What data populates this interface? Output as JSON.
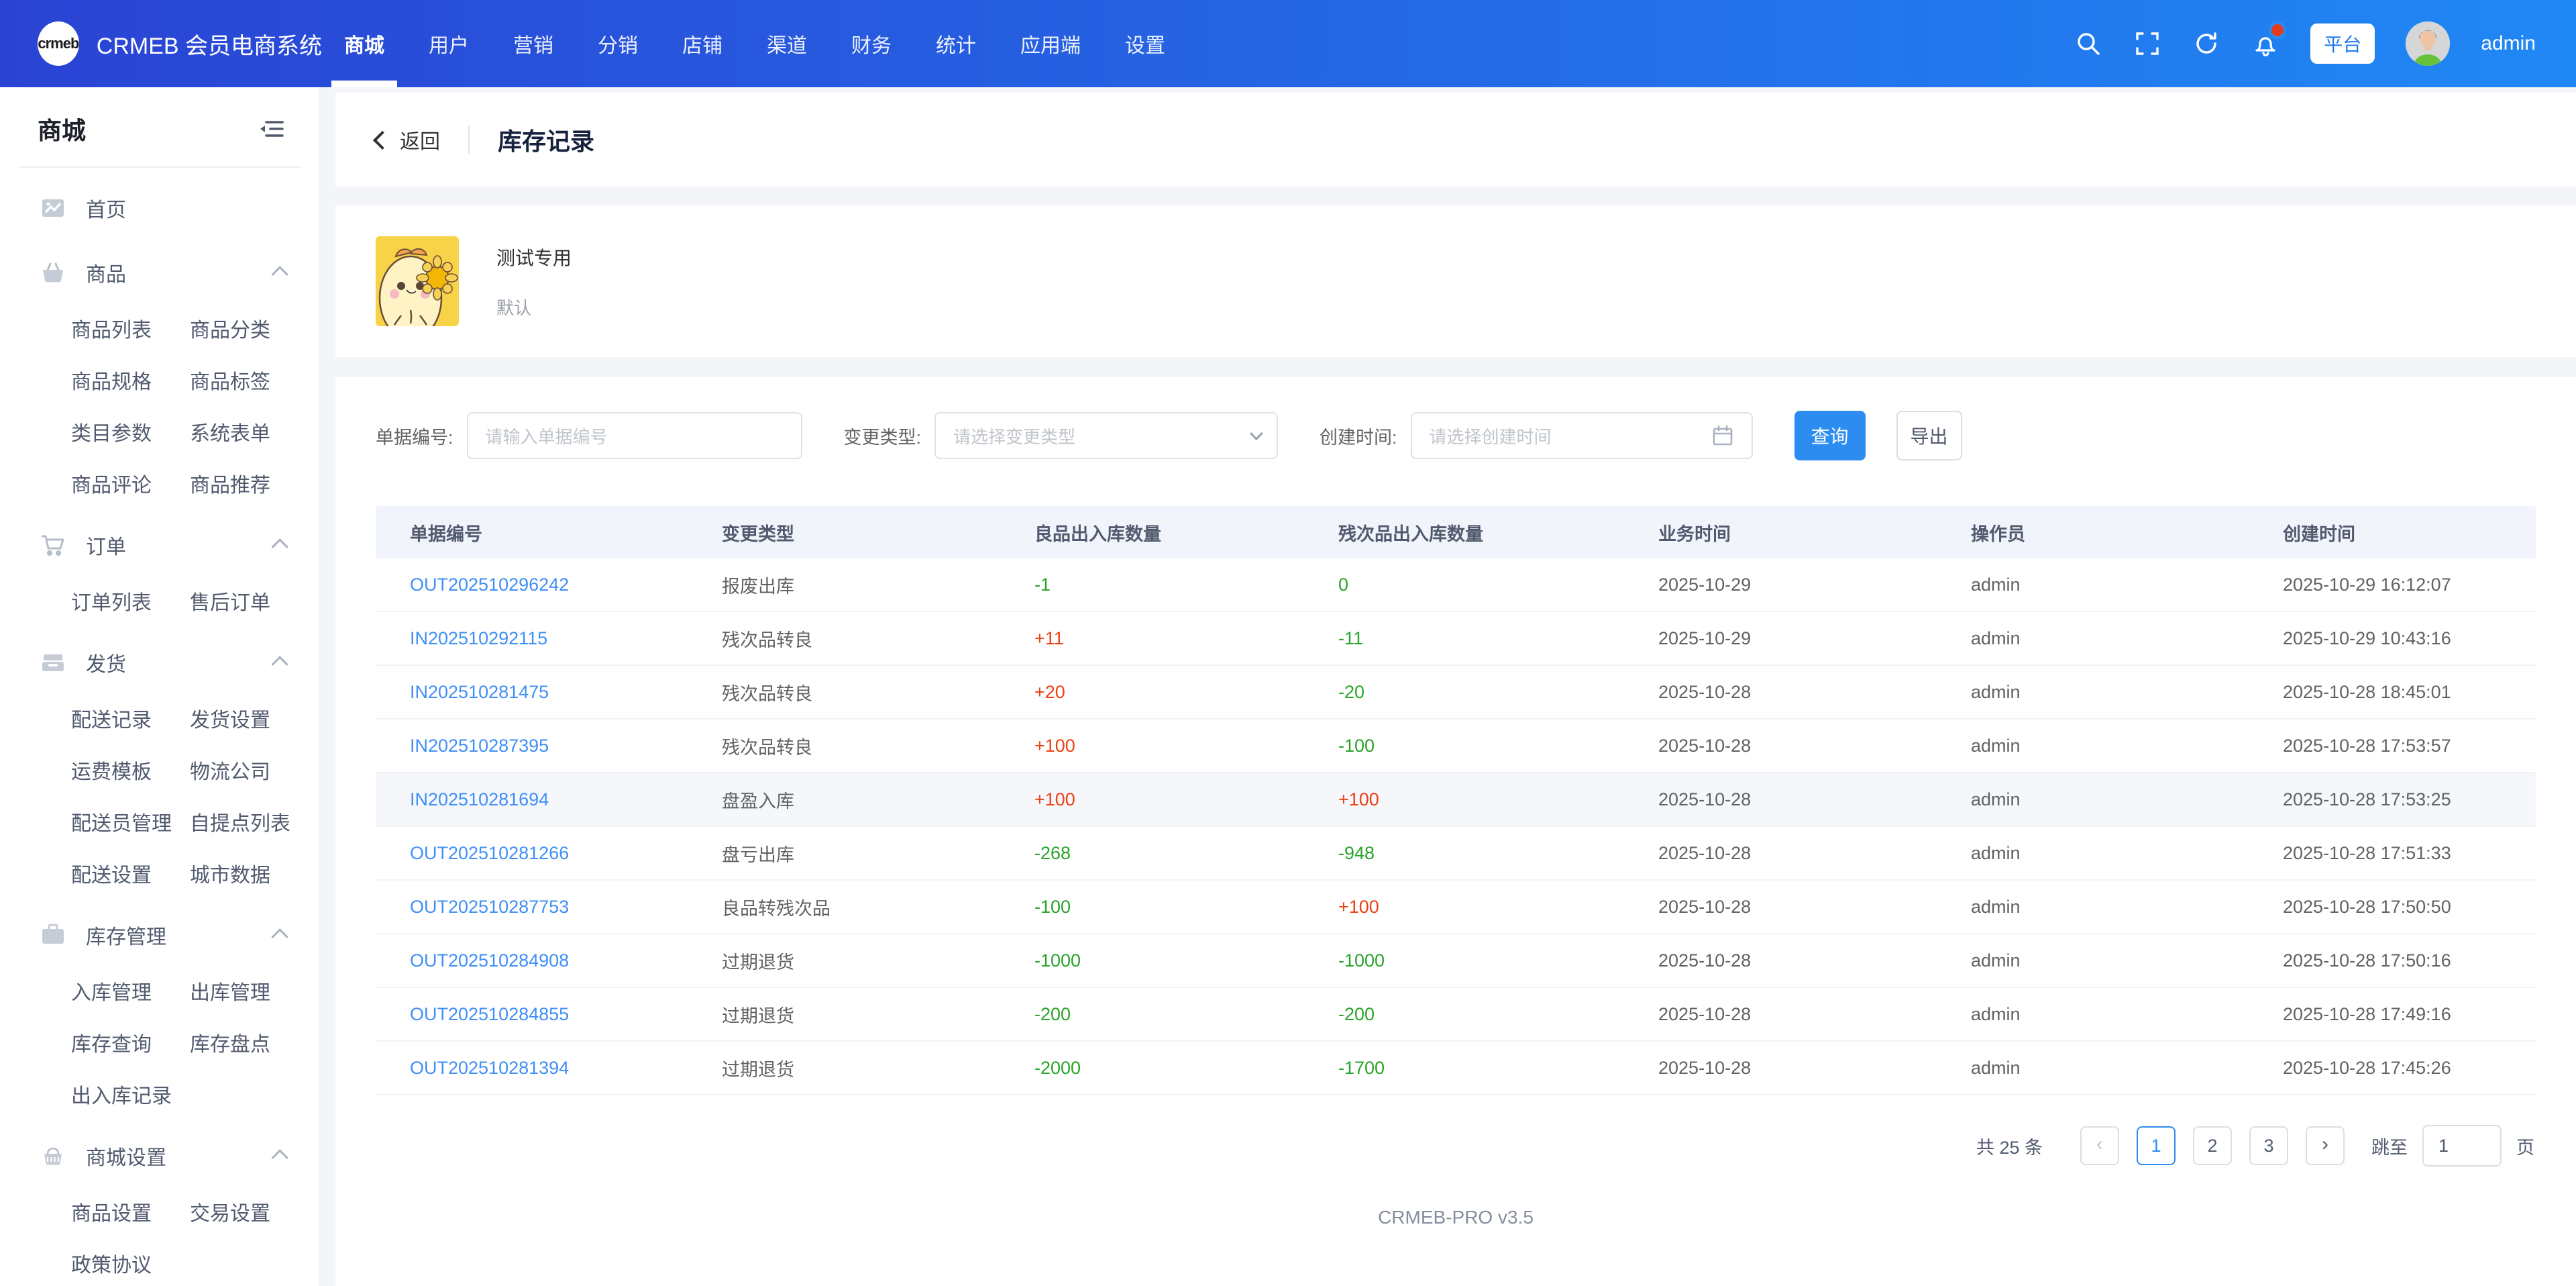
{
  "colors": {
    "nav_gradient_start": "#2a43d4",
    "nav_gradient_end": "#2088f4",
    "primary": "#2d8cf0",
    "link": "#3f8ff7",
    "positive_red": "#ed4014",
    "negative_green": "#28a428",
    "table_header_bg": "#f1f4fa"
  },
  "navbar": {
    "logo_text": "crmeb",
    "brand": "CRMEB 会员电商系统",
    "items": [
      {
        "label": "商城",
        "active": true
      },
      {
        "label": "用户",
        "active": false
      },
      {
        "label": "营销",
        "active": false
      },
      {
        "label": "分销",
        "active": false
      },
      {
        "label": "店铺",
        "active": false
      },
      {
        "label": "渠道",
        "active": false
      },
      {
        "label": "财务",
        "active": false
      },
      {
        "label": "统计",
        "active": false
      },
      {
        "label": "应用端",
        "active": false
      },
      {
        "label": "设置",
        "active": false
      }
    ],
    "platform_badge": "平台",
    "username": "admin"
  },
  "sidebar": {
    "title": "商城",
    "items": [
      {
        "label": "首页",
        "icon": "dashboard-icon",
        "children": []
      },
      {
        "label": "商品",
        "icon": "goods-icon",
        "children": [
          "商品列表",
          "商品分类",
          "商品规格",
          "商品标签",
          "类目参数",
          "系统表单",
          "商品评论",
          "商品推荐"
        ]
      },
      {
        "label": "订单",
        "icon": "order-cart-icon",
        "children": [
          "订单列表",
          "售后订单"
        ]
      },
      {
        "label": "发货",
        "icon": "delivery-icon",
        "children": [
          "配送记录",
          "发货设置",
          "运费模板",
          "物流公司",
          "配送员管理",
          "自提点列表",
          "配送设置",
          "城市数据"
        ]
      },
      {
        "label": "库存管理",
        "icon": "inventory-icon",
        "children": [
          "入库管理",
          "出库管理",
          "库存查询",
          "库存盘点",
          "出入库记录"
        ]
      },
      {
        "label": "商城设置",
        "icon": "shop-settings-icon",
        "children": [
          "商品设置",
          "交易设置",
          "政策协议"
        ]
      }
    ]
  },
  "page": {
    "back_label": "返回",
    "title": "库存记录"
  },
  "product": {
    "name": "测试专用",
    "spec": "默认"
  },
  "filters": {
    "order_no_label": "单据编号:",
    "order_no_placeholder": "请输入单据编号",
    "type_label": "变更类型:",
    "type_placeholder": "请选择变更类型",
    "time_label": "创建时间:",
    "time_placeholder": "请选择创建时间",
    "search_button": "查询",
    "export_button": "导出"
  },
  "table": {
    "headers": [
      "单据编号",
      "变更类型",
      "良品出入库数量",
      "残次品出入库数量",
      "业务时间",
      "操作员",
      "创建时间"
    ],
    "rows": [
      {
        "order_no": "OUT202510296242",
        "type": "报废出库",
        "good_qty": "-1",
        "good_tone": "green",
        "defective_qty": "0",
        "defective_tone": "green",
        "business_time": "2025-10-29",
        "operator": "admin",
        "created_at": "2025-10-29 16:12:07",
        "highlight": false
      },
      {
        "order_no": "IN202510292115",
        "type": "残次品转良",
        "good_qty": "+11",
        "good_tone": "red",
        "defective_qty": "-11",
        "defective_tone": "green",
        "business_time": "2025-10-29",
        "operator": "admin",
        "created_at": "2025-10-29 10:43:16",
        "highlight": false
      },
      {
        "order_no": "IN202510281475",
        "type": "残次品转良",
        "good_qty": "+20",
        "good_tone": "red",
        "defective_qty": "-20",
        "defective_tone": "green",
        "business_time": "2025-10-28",
        "operator": "admin",
        "created_at": "2025-10-28 18:45:01",
        "highlight": false
      },
      {
        "order_no": "IN202510287395",
        "type": "残次品转良",
        "good_qty": "+100",
        "good_tone": "red",
        "defective_qty": "-100",
        "defective_tone": "green",
        "business_time": "2025-10-28",
        "operator": "admin",
        "created_at": "2025-10-28 17:53:57",
        "highlight": false
      },
      {
        "order_no": "IN202510281694",
        "type": "盘盈入库",
        "good_qty": "+100",
        "good_tone": "red",
        "defective_qty": "+100",
        "defective_tone": "red",
        "business_time": "2025-10-28",
        "operator": "admin",
        "created_at": "2025-10-28 17:53:25",
        "highlight": true
      },
      {
        "order_no": "OUT202510281266",
        "type": "盘亏出库",
        "good_qty": "-268",
        "good_tone": "green",
        "defective_qty": "-948",
        "defective_tone": "green",
        "business_time": "2025-10-28",
        "operator": "admin",
        "created_at": "2025-10-28 17:51:33",
        "highlight": false
      },
      {
        "order_no": "OUT202510287753",
        "type": "良品转残次品",
        "good_qty": "-100",
        "good_tone": "green",
        "defective_qty": "+100",
        "defective_tone": "red",
        "business_time": "2025-10-28",
        "operator": "admin",
        "created_at": "2025-10-28 17:50:50",
        "highlight": false
      },
      {
        "order_no": "OUT202510284908",
        "type": "过期退货",
        "good_qty": "-1000",
        "good_tone": "green",
        "defective_qty": "-1000",
        "defective_tone": "green",
        "business_time": "2025-10-28",
        "operator": "admin",
        "created_at": "2025-10-28 17:50:16",
        "highlight": false
      },
      {
        "order_no": "OUT202510284855",
        "type": "过期退货",
        "good_qty": "-200",
        "good_tone": "green",
        "defective_qty": "-200",
        "defective_tone": "green",
        "business_time": "2025-10-28",
        "operator": "admin",
        "created_at": "2025-10-28 17:49:16",
        "highlight": false
      },
      {
        "order_no": "OUT202510281394",
        "type": "过期退货",
        "good_qty": "-2000",
        "good_tone": "green",
        "defective_qty": "-1700",
        "defective_tone": "green",
        "business_time": "2025-10-28",
        "operator": "admin",
        "created_at": "2025-10-28 17:45:26",
        "highlight": false
      }
    ]
  },
  "pagination": {
    "total_text": "共 25 条",
    "pages": [
      "1",
      "2",
      "3"
    ],
    "active_page": "1",
    "jump_label": "跳至",
    "jump_value": "1",
    "jump_suffix": "页"
  },
  "footer": {
    "version": "CRMEB-PRO v3.5"
  }
}
